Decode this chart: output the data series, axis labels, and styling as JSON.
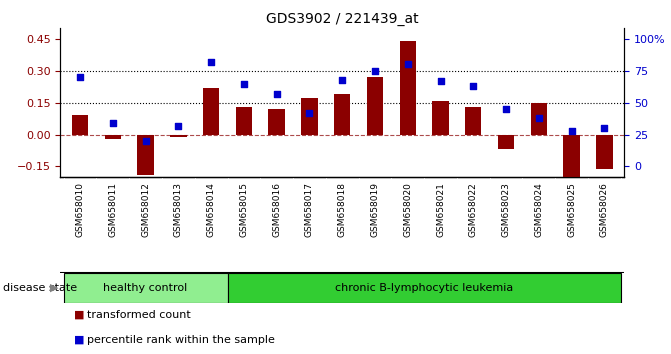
{
  "title": "GDS3902 / 221439_at",
  "samples": [
    "GSM658010",
    "GSM658011",
    "GSM658012",
    "GSM658013",
    "GSM658014",
    "GSM658015",
    "GSM658016",
    "GSM658017",
    "GSM658018",
    "GSM658019",
    "GSM658020",
    "GSM658021",
    "GSM658022",
    "GSM658023",
    "GSM658024",
    "GSM658025",
    "GSM658026"
  ],
  "bar_values": [
    0.09,
    -0.02,
    -0.19,
    -0.01,
    0.22,
    0.13,
    0.12,
    0.17,
    0.19,
    0.27,
    0.44,
    0.16,
    0.13,
    -0.07,
    0.15,
    -0.2,
    -0.16
  ],
  "blue_values": [
    70,
    34,
    20,
    32,
    82,
    65,
    57,
    42,
    68,
    75,
    80,
    67,
    63,
    45,
    38,
    28,
    30
  ],
  "ylim_left": [
    -0.2,
    0.5
  ],
  "yticks_left": [
    -0.15,
    0.0,
    0.15,
    0.3,
    0.45
  ],
  "hlines": [
    0.15,
    0.3
  ],
  "bar_color": "#8B0000",
  "blue_color": "#0000CD",
  "healthy_color": "#90EE90",
  "leukemia_color": "#32CD32",
  "n_healthy": 5,
  "label_healthy": "healthy control",
  "label_leukemia": "chronic B-lymphocytic leukemia",
  "label_bar": "transformed count",
  "label_blue": "percentile rank within the sample",
  "disease_state_label": "disease state"
}
